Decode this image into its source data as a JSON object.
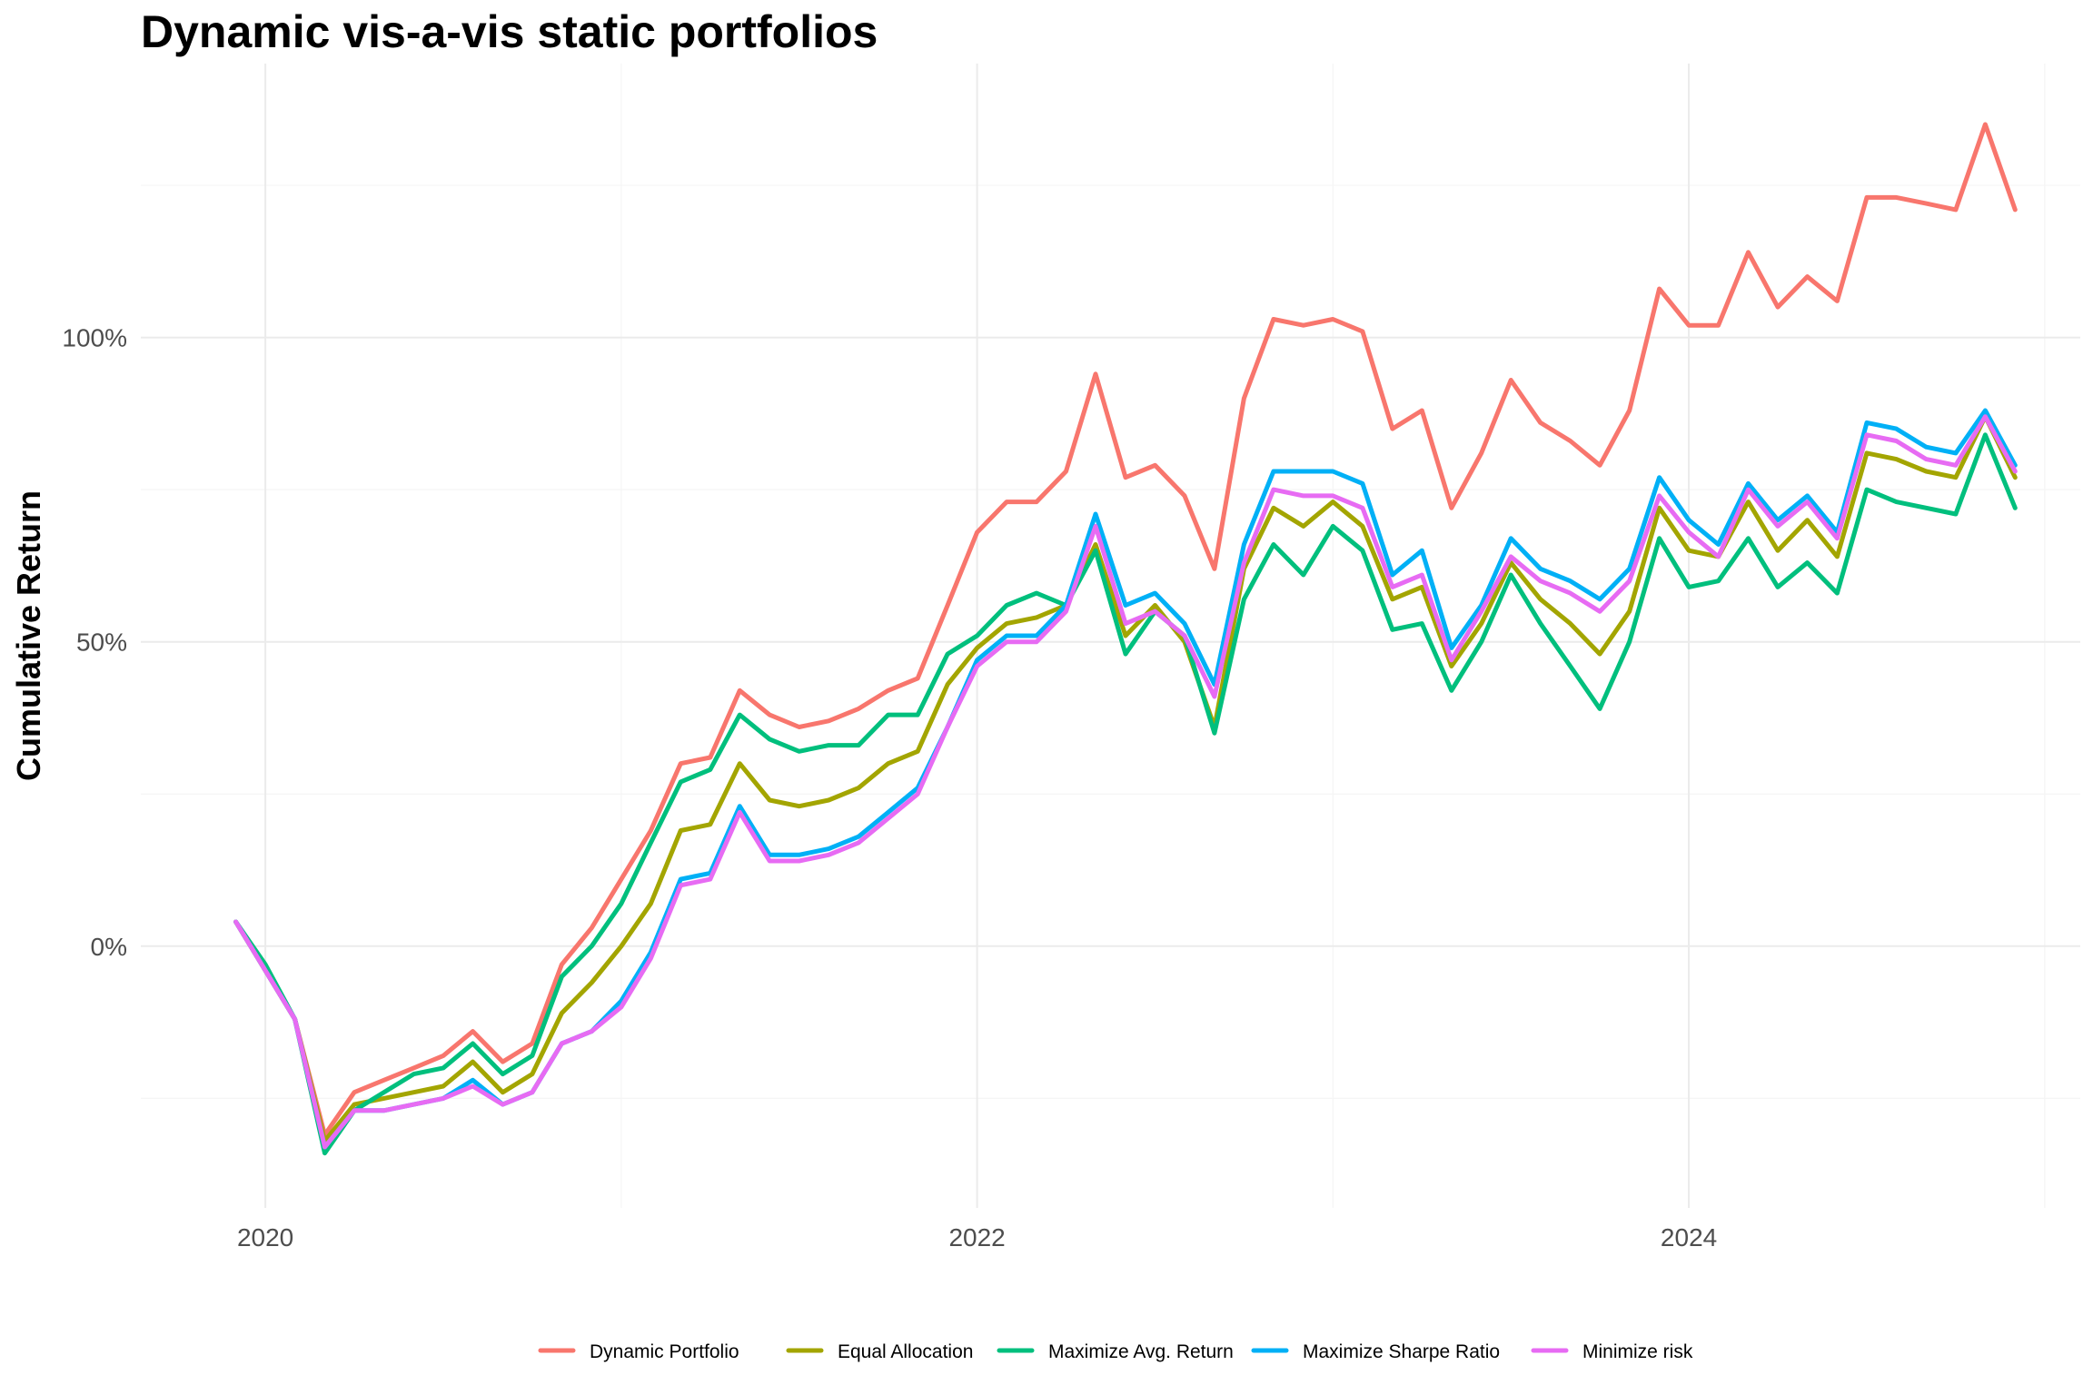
{
  "chart_data": {
    "type": "line",
    "title": "Dynamic vis-a-vis static portfolios",
    "xlabel": "",
    "ylabel": "Cumulative Return",
    "x_ticks": [
      "2020",
      "2022",
      "2024"
    ],
    "y_ticks": [
      "0%",
      "50%",
      "100%"
    ],
    "xlim": [
      2019.65,
      2025.1
    ],
    "ylim": [
      -0.43,
      1.45
    ],
    "grid": true,
    "legend_position": "bottom",
    "x": [
      2019.917,
      2020.0,
      2020.083,
      2020.167,
      2020.25,
      2020.333,
      2020.417,
      2020.5,
      2020.583,
      2020.667,
      2020.75,
      2020.833,
      2020.917,
      2021.0,
      2021.083,
      2021.167,
      2021.25,
      2021.333,
      2021.417,
      2021.5,
      2021.583,
      2021.667,
      2021.75,
      2021.833,
      2021.917,
      2022.0,
      2022.083,
      2022.167,
      2022.25,
      2022.333,
      2022.417,
      2022.5,
      2022.583,
      2022.667,
      2022.75,
      2022.833,
      2022.917,
      2023.0,
      2023.083,
      2023.167,
      2023.25,
      2023.333,
      2023.417,
      2023.5,
      2023.583,
      2023.667,
      2023.75,
      2023.833,
      2023.917,
      2024.0,
      2024.083,
      2024.167,
      2024.25,
      2024.333,
      2024.417,
      2024.5,
      2024.583,
      2024.667,
      2024.75,
      2024.833,
      2024.917
    ],
    "series": [
      {
        "name": "Dynamic Portfolio",
        "color": "#F8766D",
        "values": [
          0.04,
          -0.04,
          -0.12,
          -0.31,
          -0.24,
          -0.22,
          -0.2,
          -0.18,
          -0.14,
          -0.19,
          -0.16,
          -0.03,
          0.03,
          0.11,
          0.19,
          0.3,
          0.31,
          0.42,
          0.38,
          0.36,
          0.37,
          0.39,
          0.42,
          0.44,
          0.56,
          0.68,
          0.73,
          0.73,
          0.78,
          0.94,
          0.77,
          0.79,
          0.74,
          0.62,
          0.9,
          1.03,
          1.02,
          1.03,
          1.01,
          0.85,
          0.88,
          0.72,
          0.81,
          0.93,
          0.86,
          0.83,
          0.79,
          0.88,
          1.08,
          1.02,
          1.02,
          1.14,
          1.05,
          1.1,
          1.06,
          1.23,
          1.23,
          1.22,
          1.21,
          1.35,
          1.21
        ]
      },
      {
        "name": "Equal Allocation",
        "color": "#A3A500",
        "values": [
          0.04,
          -0.04,
          -0.12,
          -0.32,
          -0.26,
          -0.25,
          -0.24,
          -0.23,
          -0.19,
          -0.24,
          -0.21,
          -0.11,
          -0.06,
          0.0,
          0.07,
          0.19,
          0.2,
          0.3,
          0.24,
          0.23,
          0.24,
          0.26,
          0.3,
          0.32,
          0.43,
          0.49,
          0.53,
          0.54,
          0.56,
          0.66,
          0.51,
          0.56,
          0.5,
          0.36,
          0.62,
          0.72,
          0.69,
          0.73,
          0.69,
          0.57,
          0.59,
          0.46,
          0.53,
          0.63,
          0.57,
          0.53,
          0.48,
          0.55,
          0.72,
          0.65,
          0.64,
          0.73,
          0.65,
          0.7,
          0.64,
          0.81,
          0.8,
          0.78,
          0.77,
          0.87,
          0.77
        ]
      },
      {
        "name": "Maximize Avg. Return",
        "color": "#00BF7D",
        "values": [
          0.04,
          -0.03,
          -0.12,
          -0.34,
          -0.27,
          -0.24,
          -0.21,
          -0.2,
          -0.16,
          -0.21,
          -0.18,
          -0.05,
          0.0,
          0.07,
          0.17,
          0.27,
          0.29,
          0.38,
          0.34,
          0.32,
          0.33,
          0.33,
          0.38,
          0.38,
          0.48,
          0.51,
          0.56,
          0.58,
          0.56,
          0.65,
          0.48,
          0.55,
          0.51,
          0.35,
          0.57,
          0.66,
          0.61,
          0.69,
          0.65,
          0.52,
          0.53,
          0.42,
          0.5,
          0.61,
          0.53,
          0.46,
          0.39,
          0.5,
          0.67,
          0.59,
          0.6,
          0.67,
          0.59,
          0.63,
          0.58,
          0.75,
          0.73,
          0.72,
          0.71,
          0.84,
          0.72
        ]
      },
      {
        "name": "Maximize Sharpe Ratio",
        "color": "#00B0F6",
        "values": [
          0.04,
          -0.04,
          -0.12,
          -0.33,
          -0.27,
          -0.27,
          -0.26,
          -0.25,
          -0.22,
          -0.26,
          -0.24,
          -0.16,
          -0.14,
          -0.09,
          -0.01,
          0.11,
          0.12,
          0.23,
          0.15,
          0.15,
          0.16,
          0.18,
          0.22,
          0.26,
          0.36,
          0.47,
          0.51,
          0.51,
          0.56,
          0.71,
          0.56,
          0.58,
          0.53,
          0.43,
          0.66,
          0.78,
          0.78,
          0.78,
          0.76,
          0.61,
          0.65,
          0.49,
          0.56,
          0.67,
          0.62,
          0.6,
          0.57,
          0.62,
          0.77,
          0.7,
          0.66,
          0.76,
          0.7,
          0.74,
          0.68,
          0.86,
          0.85,
          0.82,
          0.81,
          0.88,
          0.79
        ]
      },
      {
        "name": "Minimize risk",
        "color": "#E76BF3",
        "values": [
          0.04,
          -0.04,
          -0.12,
          -0.33,
          -0.27,
          -0.27,
          -0.26,
          -0.25,
          -0.23,
          -0.26,
          -0.24,
          -0.16,
          -0.14,
          -0.1,
          -0.02,
          0.1,
          0.11,
          0.22,
          0.14,
          0.14,
          0.15,
          0.17,
          0.21,
          0.25,
          0.36,
          0.46,
          0.5,
          0.5,
          0.55,
          0.69,
          0.53,
          0.55,
          0.51,
          0.41,
          0.63,
          0.75,
          0.74,
          0.74,
          0.72,
          0.59,
          0.61,
          0.47,
          0.55,
          0.64,
          0.6,
          0.58,
          0.55,
          0.6,
          0.74,
          0.68,
          0.64,
          0.75,
          0.69,
          0.73,
          0.67,
          0.84,
          0.83,
          0.8,
          0.79,
          0.87,
          0.78
        ]
      }
    ]
  }
}
